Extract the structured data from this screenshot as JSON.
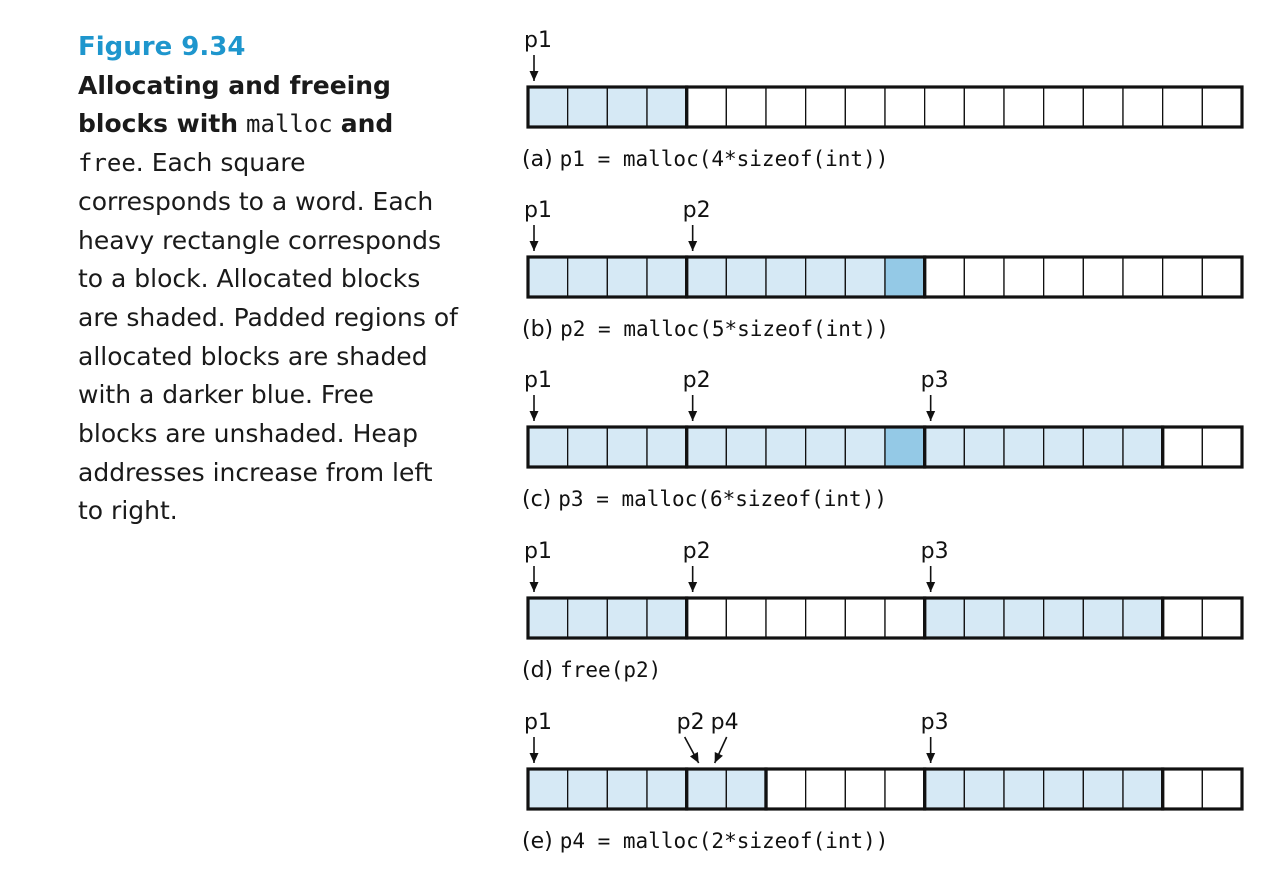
{
  "caption": {
    "figure_label": "Figure 9.34",
    "bold_1": "Allocating and freeing blocks with",
    "code_1": "malloc",
    "bold_2": "and",
    "code_2": "free",
    "body": ". Each square corresponds to a word. Each heavy rectangle corresponds to a block. Allocated blocks are shaded. Padded regions of allocated blocks are shaded with a darker blue. Free blocks are unshaded. Heap addresses increase from left to right."
  },
  "colors": {
    "allocated": "#d6e9f5",
    "padding": "#94c9e6",
    "free": "#ffffff",
    "title": "#1e96cd"
  },
  "total_words": 18,
  "rows": [
    {
      "prefix": "(a)",
      "code": "p1 = malloc(4*sizeof(int))",
      "blocks": [
        {
          "size": 4,
          "state": "allocated",
          "padding": 0
        },
        {
          "size": 14,
          "state": "free",
          "padding": 0
        }
      ],
      "pointers": [
        {
          "name": "p1",
          "word": 0
        }
      ]
    },
    {
      "prefix": "(b)",
      "code": "p2 = malloc(5*sizeof(int))",
      "blocks": [
        {
          "size": 4,
          "state": "allocated",
          "padding": 0
        },
        {
          "size": 6,
          "state": "allocated",
          "padding": 1
        },
        {
          "size": 8,
          "state": "free",
          "padding": 0
        }
      ],
      "pointers": [
        {
          "name": "p1",
          "word": 0
        },
        {
          "name": "p2",
          "word": 4
        }
      ]
    },
    {
      "prefix": "(c)",
      "code": "p3 = malloc(6*sizeof(int))",
      "blocks": [
        {
          "size": 4,
          "state": "allocated",
          "padding": 0
        },
        {
          "size": 6,
          "state": "allocated",
          "padding": 1
        },
        {
          "size": 6,
          "state": "allocated",
          "padding": 0
        },
        {
          "size": 2,
          "state": "free",
          "padding": 0
        }
      ],
      "pointers": [
        {
          "name": "p1",
          "word": 0
        },
        {
          "name": "p2",
          "word": 4
        },
        {
          "name": "p3",
          "word": 10
        }
      ]
    },
    {
      "prefix": "(d)",
      "code": "free(p2)",
      "blocks": [
        {
          "size": 4,
          "state": "allocated",
          "padding": 0
        },
        {
          "size": 6,
          "state": "free",
          "padding": 0
        },
        {
          "size": 6,
          "state": "allocated",
          "padding": 0
        },
        {
          "size": 2,
          "state": "free",
          "padding": 0
        }
      ],
      "pointers": [
        {
          "name": "p1",
          "word": 0
        },
        {
          "name": "p2",
          "word": 4
        },
        {
          "name": "p3",
          "word": 10
        }
      ]
    },
    {
      "prefix": "(e)",
      "code": "p4 = malloc(2*sizeof(int))",
      "blocks": [
        {
          "size": 4,
          "state": "allocated",
          "padding": 0
        },
        {
          "size": 2,
          "state": "allocated",
          "padding": 0
        },
        {
          "size": 4,
          "state": "free",
          "padding": 0
        },
        {
          "size": 6,
          "state": "allocated",
          "padding": 0
        },
        {
          "size": 2,
          "state": "free",
          "padding": 0
        }
      ],
      "pointers": [
        {
          "name": "p1",
          "word": 0
        },
        {
          "name": "p2",
          "word": 4,
          "slant": "left"
        },
        {
          "name": "p4",
          "word": 4,
          "slant": "right"
        },
        {
          "name": "p3",
          "word": 10
        }
      ]
    }
  ]
}
